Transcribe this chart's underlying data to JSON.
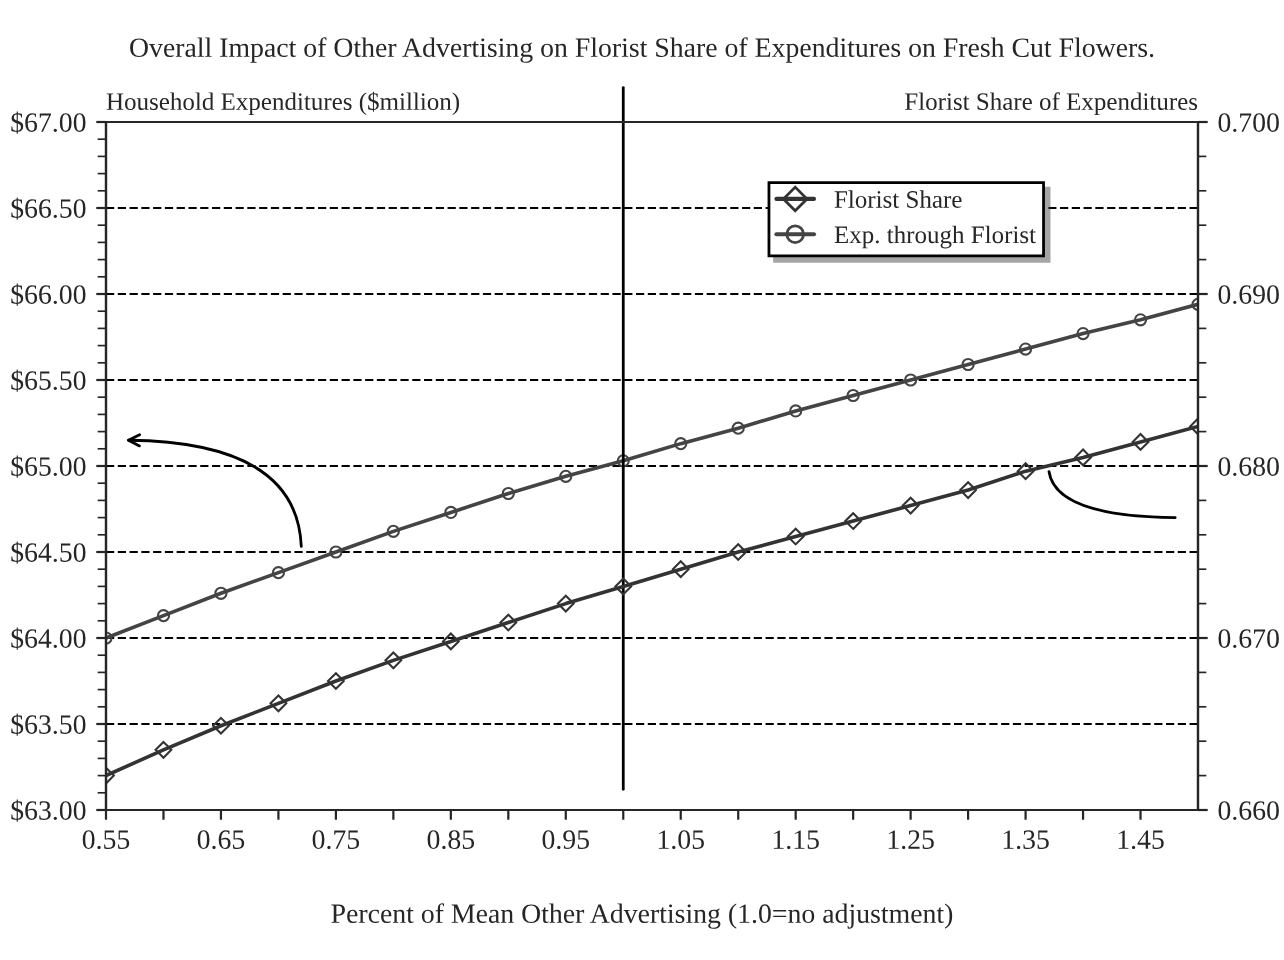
{
  "chart_data": {
    "type": "line",
    "title": "Overall Impact of Other Advertising on Florist Share of Expenditures on Fresh Cut Flowers.",
    "xlabel": "Percent of Mean Other Advertising (1.0=no adjustment)",
    "ylabel": "Household Expenditures ($million)",
    "y2label": "Florist Share of Expenditures",
    "x": [
      0.55,
      0.6,
      0.65,
      0.7,
      0.75,
      0.8,
      0.85,
      0.9,
      0.95,
      1.0,
      1.05,
      1.1,
      1.15,
      1.2,
      1.25,
      1.3,
      1.35,
      1.4,
      1.45,
      1.5
    ],
    "series": [
      {
        "name": "Florist Share",
        "color": "#333333",
        "axis": "y2",
        "marker": "diamond",
        "values": [
          0.662,
          0.6635,
          0.6649,
          0.6662,
          0.6675,
          0.6687,
          0.6698,
          0.6709,
          0.672,
          0.673,
          0.674,
          0.675,
          0.6759,
          0.6768,
          0.6777,
          0.6786,
          0.6797,
          0.6805,
          0.6814,
          0.6823
        ]
      },
      {
        "name": "Exp. through Florist",
        "color": "#444444",
        "marker": "circle",
        "values": [
          64.0,
          64.13,
          64.26,
          64.38,
          64.5,
          64.62,
          64.73,
          64.84,
          64.94,
          65.03,
          65.13,
          65.22,
          65.32,
          65.41,
          65.5,
          65.59,
          65.68,
          65.77,
          65.85,
          65.94
        ]
      }
    ],
    "xlim": [
      0.55,
      1.5
    ],
    "xticks": [
      0.55,
      {
        "value": 0.6,
        "label": null
      },
      0.65,
      {
        "value": 0.7,
        "label": null
      },
      0.75,
      {
        "value": 0.8,
        "label": null
      },
      0.85,
      {
        "value": 0.9,
        "label": null
      },
      0.95,
      {
        "value": 1.0,
        "label": null
      },
      1.05,
      {
        "value": 1.1,
        "label": null
      },
      1.15,
      {
        "value": 1.2,
        "label": null
      },
      1.25,
      {
        "value": 1.3,
        "label": null
      },
      1.35,
      {
        "value": 1.4,
        "label": null
      },
      1.45
    ],
    "ylim": [
      63,
      67
    ],
    "yticks": [
      {
        "value": 63,
        "label": "$63.00"
      },
      {
        "value": 63.5,
        "label": "$63.50"
      },
      {
        "value": 64,
        "label": "$64.00"
      },
      {
        "value": 64.5,
        "label": "$64.50"
      },
      {
        "value": 65,
        "label": "$65.00"
      },
      {
        "value": 65.5,
        "label": "$65.50"
      },
      {
        "value": 66,
        "label": "$66.00"
      },
      {
        "value": 66.5,
        "label": "$66.50"
      },
      {
        "value": 67,
        "label": "$67.00"
      }
    ],
    "y2lim": [
      0.66,
      0.7
    ],
    "y2ticks": [
      {
        "value": 0.66,
        "label": "0.660"
      },
      {
        "value": 0.67,
        "label": "0.670"
      },
      {
        "value": 0.68,
        "label": "0.680"
      },
      {
        "value": 0.69,
        "label": "0.690"
      },
      {
        "value": 0.7,
        "label": "0.700"
      }
    ],
    "ref_lines": [
      {
        "axis": "x",
        "value": 1.0,
        "color": "#000000",
        "line_style": "solid"
      }
    ],
    "grid": "y",
    "line_style": "solid",
    "legend": "top right"
  }
}
